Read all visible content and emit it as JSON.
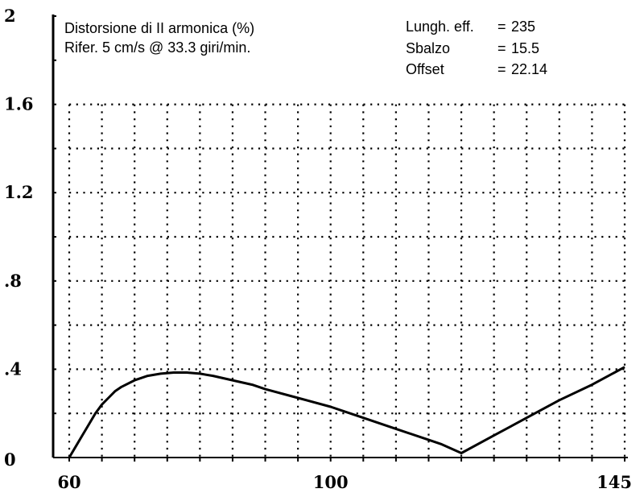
{
  "chart_data": {
    "type": "line",
    "title_lines": [
      "Distorsione di II armonica (%)",
      "Rifer. 5 cm/s @ 33.3 giri/min."
    ],
    "params": [
      {
        "label": "Lungh. eff.",
        "sep": "=",
        "value": "235"
      },
      {
        "label": "Sbalzo",
        "sep": "=",
        "value": "15.5"
      },
      {
        "label": "Offset",
        "sep": "=",
        "value": "22.14"
      }
    ],
    "xlim": [
      60,
      145
    ],
    "ylim": [
      0,
      2
    ],
    "x_tick_labels": [
      {
        "x": 60,
        "label": "60"
      },
      {
        "x": 100,
        "label": "100"
      },
      {
        "x": 145,
        "label": "145"
      }
    ],
    "y_tick_labels": [
      {
        "y": 0,
        "label": "0"
      },
      {
        "y": 0.4,
        "label": ".4"
      },
      {
        "y": 0.8,
        "label": ".8"
      },
      {
        "y": 1.2,
        "label": "1.2"
      },
      {
        "y": 1.6,
        "label": "1.6"
      },
      {
        "y": 2,
        "label": "2"
      }
    ],
    "grid": "dotted",
    "series": [
      {
        "x": [
          60,
          61,
          62,
          63,
          64,
          65,
          66,
          67,
          68,
          70,
          72,
          74,
          76,
          78,
          80,
          82,
          85,
          88,
          90,
          95,
          100,
          105,
          110,
          115,
          117,
          120,
          125,
          130,
          135,
          140,
          145
        ],
        "y": [
          0.0,
          0.05,
          0.1,
          0.15,
          0.2,
          0.24,
          0.27,
          0.3,
          0.32,
          0.35,
          0.37,
          0.38,
          0.385,
          0.385,
          0.38,
          0.37,
          0.35,
          0.33,
          0.31,
          0.27,
          0.23,
          0.18,
          0.13,
          0.08,
          0.06,
          0.02,
          0.1,
          0.18,
          0.26,
          0.33,
          0.41
        ]
      }
    ]
  }
}
